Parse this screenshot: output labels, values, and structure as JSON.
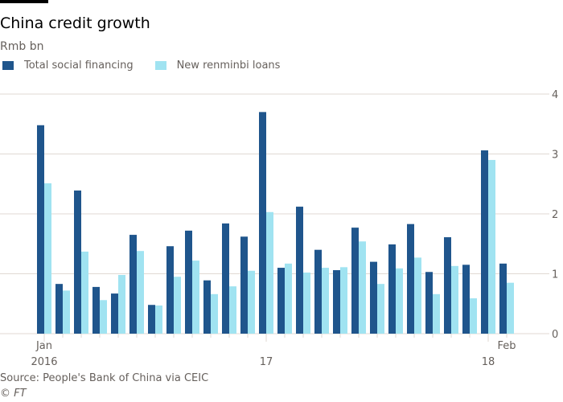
{
  "header": {
    "title": "China credit growth",
    "subtitle": "Rmb bn"
  },
  "footer": {
    "source": "Source: People's Bank of China via CEIC",
    "copyright": "© FT"
  },
  "colors": {
    "series1": "#1f558c",
    "series2": "#a0e3f1",
    "grid": "#e0d9d3",
    "text": "#66605c"
  },
  "chart_data": {
    "type": "bar",
    "title": "China credit growth",
    "ylabel": "Rmb bn",
    "xlabel": "",
    "ylim": [
      0,
      4
    ],
    "yticks": [
      "0",
      "1",
      "2",
      "3",
      "4"
    ],
    "grid": true,
    "legend_position": "top-left",
    "categories": [
      "Jan 2016",
      "Feb 2016",
      "Mar 2016",
      "Apr 2016",
      "May 2016",
      "Jun 2016",
      "Jul 2016",
      "Aug 2016",
      "Sep 2016",
      "Oct 2016",
      "Nov 2016",
      "Dec 2016",
      "Jan 2017",
      "Feb 2017",
      "Mar 2017",
      "Apr 2017",
      "May 2017",
      "Jun 2017",
      "Jul 2017",
      "Aug 2017",
      "Sep 2017",
      "Oct 2017",
      "Nov 2017",
      "Dec 2017",
      "Jan 2018",
      "Feb 2018"
    ],
    "x_tick_labels": [
      {
        "index": 0,
        "line1": "Jan",
        "line2": "2016"
      },
      {
        "index": 12,
        "line1": "",
        "line2": "17"
      },
      {
        "index": 24,
        "line1": "",
        "line2": "18"
      },
      {
        "index": 25,
        "line1": "Feb",
        "line2": ""
      }
    ],
    "series": [
      {
        "name": "Total social financing",
        "values": [
          3.48,
          0.83,
          2.39,
          0.78,
          0.67,
          1.65,
          0.48,
          1.46,
          1.72,
          0.89,
          1.84,
          1.62,
          3.7,
          1.1,
          2.12,
          1.4,
          1.06,
          1.77,
          1.2,
          1.49,
          1.83,
          1.03,
          1.61,
          1.15,
          3.06,
          1.17
        ]
      },
      {
        "name": "New renminbi loans",
        "values": [
          2.51,
          0.72,
          1.37,
          0.56,
          0.98,
          1.38,
          0.47,
          0.95,
          1.22,
          0.66,
          0.79,
          1.05,
          2.03,
          1.17,
          1.02,
          1.1,
          1.11,
          1.54,
          0.83,
          1.09,
          1.27,
          0.66,
          1.13,
          0.59,
          2.9,
          0.85
        ]
      }
    ]
  }
}
